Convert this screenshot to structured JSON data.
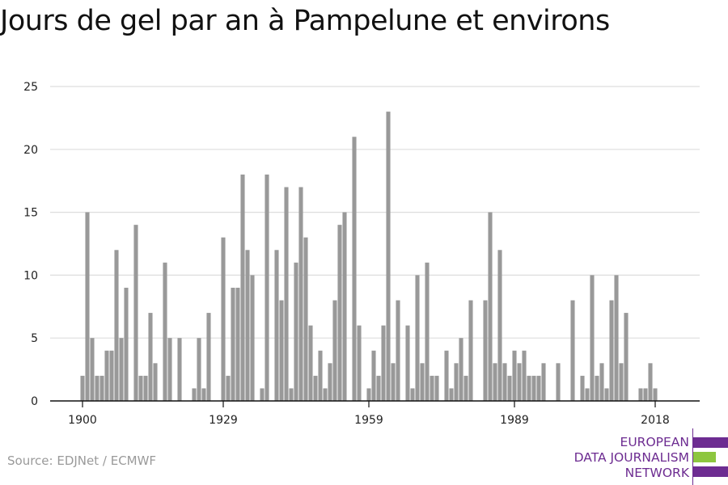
{
  "title": "Jours de gel par an à Pampelune et environs",
  "source": "Source: EDJNet / ECMWF",
  "logo": {
    "line1": "EUROPEAN",
    "line2": "DATA JOURNALISM",
    "line3": "NETWORK",
    "colors": {
      "purple": "#6d2c91",
      "green": "#8dc63f"
    }
  },
  "colors": {
    "bar": "#999999",
    "grid": "#dddddd",
    "axis": "#111111"
  },
  "chart_data": {
    "type": "bar",
    "title": "Jours de gel par an à Pampelune et environs",
    "xlabel": "",
    "ylabel": "",
    "ylim": [
      0,
      25
    ],
    "yticks": [
      0,
      5,
      10,
      15,
      20,
      25
    ],
    "xticks": [
      1900,
      1929,
      1959,
      1989,
      2018
    ],
    "grid": true,
    "x": [
      1900,
      1901,
      1902,
      1903,
      1904,
      1905,
      1906,
      1907,
      1908,
      1909,
      1910,
      1911,
      1912,
      1913,
      1914,
      1915,
      1916,
      1917,
      1918,
      1919,
      1920,
      1921,
      1922,
      1923,
      1924,
      1925,
      1926,
      1927,
      1928,
      1929,
      1930,
      1931,
      1932,
      1933,
      1934,
      1935,
      1936,
      1937,
      1938,
      1939,
      1940,
      1941,
      1942,
      1943,
      1944,
      1945,
      1946,
      1947,
      1948,
      1949,
      1950,
      1951,
      1952,
      1953,
      1954,
      1955,
      1956,
      1957,
      1958,
      1959,
      1960,
      1961,
      1962,
      1963,
      1964,
      1965,
      1966,
      1967,
      1968,
      1969,
      1970,
      1971,
      1972,
      1973,
      1974,
      1975,
      1976,
      1977,
      1978,
      1979,
      1980,
      1981,
      1982,
      1983,
      1984,
      1985,
      1986,
      1987,
      1988,
      1989,
      1990,
      1991,
      1992,
      1993,
      1994,
      1995,
      1996,
      1997,
      1998,
      1999,
      2000,
      2001,
      2002,
      2003,
      2004,
      2005,
      2006,
      2007,
      2008,
      2009,
      2010,
      2011,
      2012,
      2013,
      2014,
      2015,
      2016,
      2017,
      2018
    ],
    "values": [
      2,
      15,
      5,
      2,
      2,
      4,
      4,
      12,
      5,
      9,
      0,
      14,
      2,
      2,
      7,
      3,
      0,
      11,
      5,
      0,
      5,
      0,
      0,
      1,
      5,
      1,
      7,
      0,
      0,
      13,
      2,
      9,
      9,
      18,
      12,
      10,
      0,
      1,
      18,
      0,
      12,
      8,
      17,
      1,
      11,
      17,
      13,
      6,
      2,
      4,
      1,
      3,
      8,
      14,
      15,
      0,
      21,
      6,
      0,
      1,
      4,
      2,
      6,
      23,
      3,
      8,
      0,
      6,
      1,
      10,
      3,
      11,
      2,
      2,
      0,
      4,
      1,
      3,
      5,
      2,
      8,
      0,
      0,
      8,
      15,
      3,
      12,
      3,
      2,
      4,
      3,
      4,
      2,
      2,
      2,
      3,
      0,
      0,
      3,
      0,
      0,
      8,
      0,
      2,
      1,
      10,
      2,
      3,
      1,
      8,
      10,
      3,
      7,
      0,
      0,
      1,
      1,
      3,
      1
    ]
  }
}
